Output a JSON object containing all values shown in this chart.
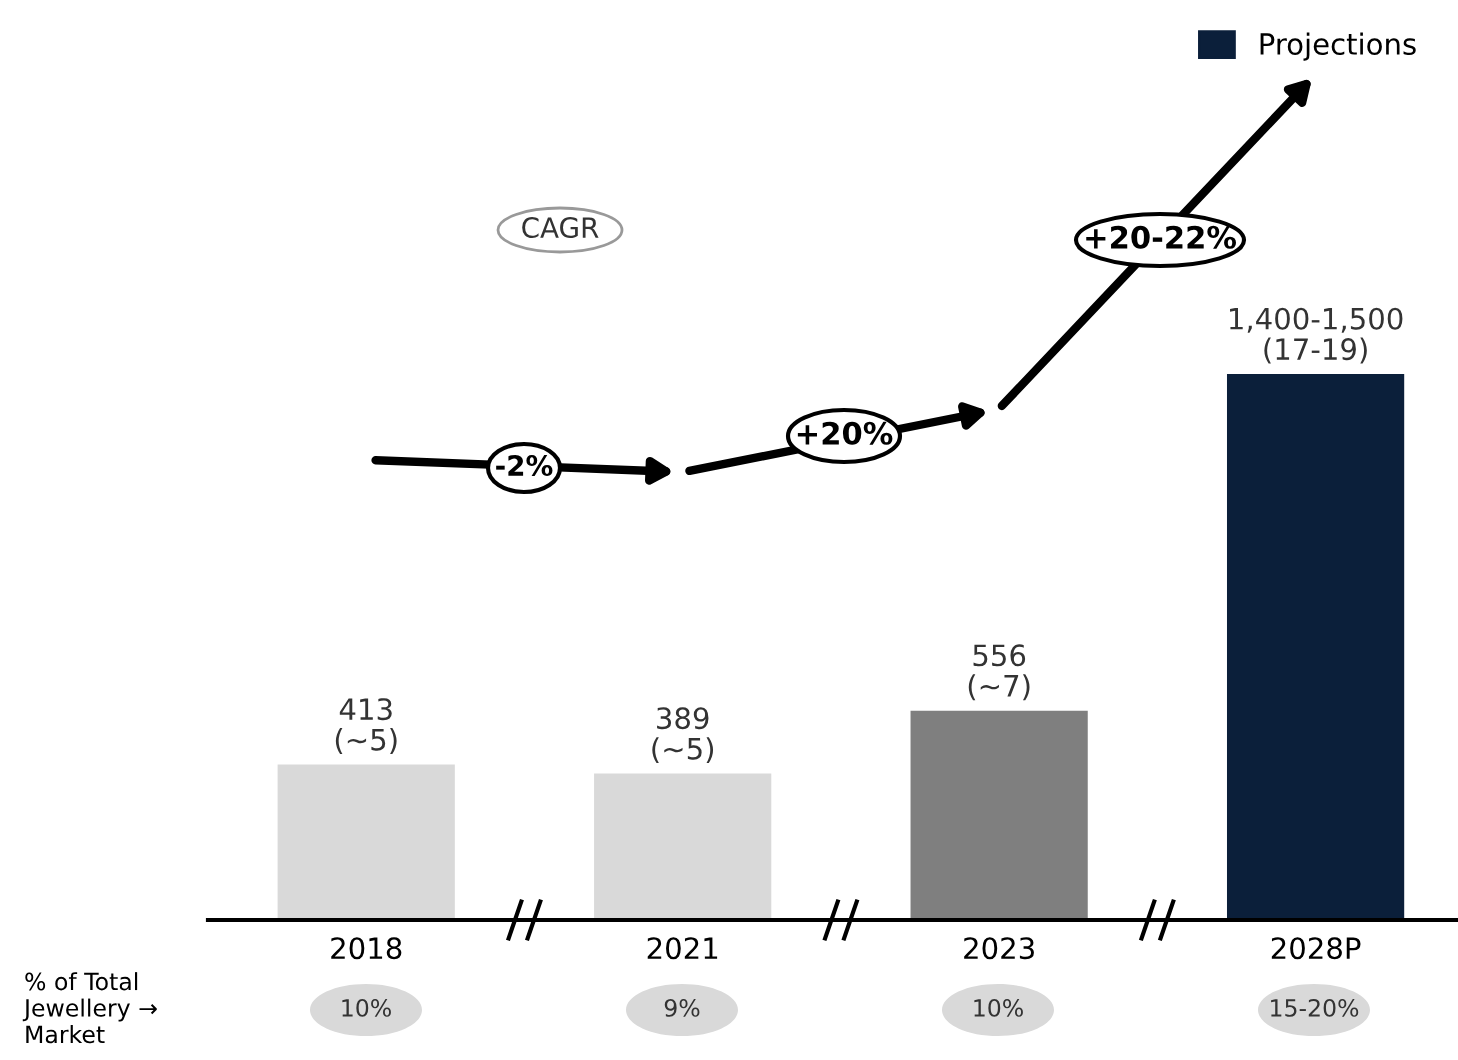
{
  "chart_data": {
    "type": "bar",
    "categories": [
      "2018",
      "2021",
      "2023",
      "2028P"
    ],
    "series": [
      {
        "values": [
          413,
          389,
          556,
          null
        ],
        "colors": [
          "#d9d9d9",
          "#d9d9d9",
          "#7f7f7f",
          "#0b1f3a"
        ],
        "value_labels": [
          "413\n(~5)",
          "389\n(~5)",
          "556\n(~7)",
          null
        ]
      },
      {
        "name": "Projections",
        "color": "#0b1f3a",
        "values": [
          null,
          null,
          null,
          1450
        ],
        "value_labels": [
          null,
          null,
          null,
          "1,400-1,500\n(17-19)"
        ]
      }
    ],
    "legend": "top right",
    "annotations": [
      "CAGR",
      "-2%",
      "+20%",
      "+20-22%",
      "% of Total\nJewellery →\nMarket",
      "10%",
      "9%",
      "10%",
      "15-20%"
    ]
  }
}
